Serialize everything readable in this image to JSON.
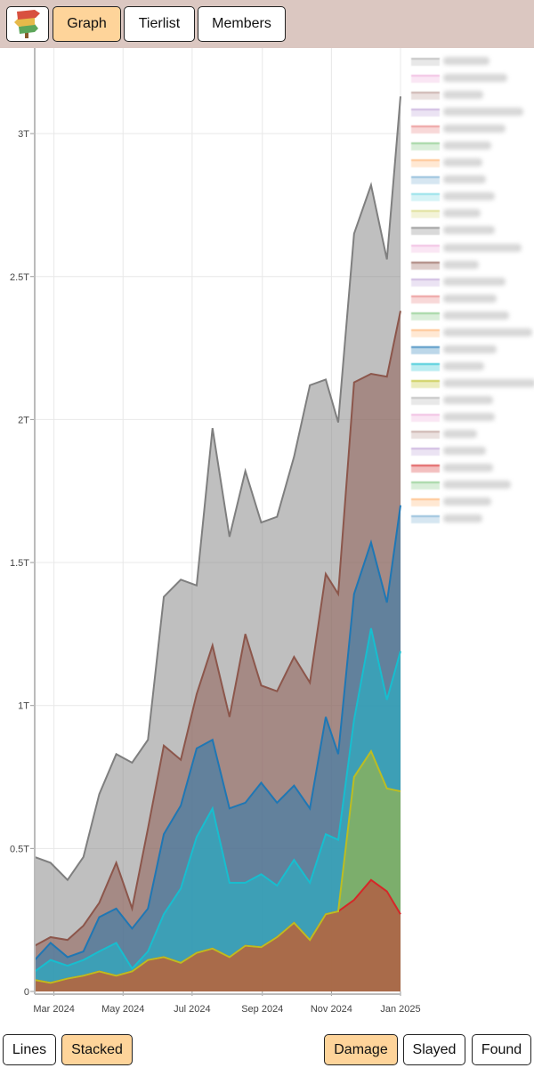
{
  "header": {
    "logo_icon": "signpost-icon",
    "tabs": [
      {
        "label": "Graph",
        "active": true
      },
      {
        "label": "Tierlist",
        "active": false
      },
      {
        "label": "Members",
        "active": false
      }
    ]
  },
  "footer": {
    "mode_buttons": [
      {
        "label": "Lines",
        "active": false
      },
      {
        "label": "Stacked",
        "active": true
      }
    ],
    "metric_buttons": [
      {
        "label": "Damage",
        "active": true
      },
      {
        "label": "Slayed",
        "active": false
      },
      {
        "label": "Found",
        "active": false
      }
    ]
  },
  "colors": {
    "header_bg": "#dbc7c1",
    "active_button": "#fed49a"
  },
  "legend": {
    "entries": [
      {
        "color": "#7f7f7f",
        "active": false
      },
      {
        "color": "#e377c2",
        "active": false
      },
      {
        "color": "#8c564b",
        "active": false
      },
      {
        "color": "#9467bd",
        "active": false
      },
      {
        "color": "#d62728",
        "active": false
      },
      {
        "color": "#2ca02c",
        "active": false
      },
      {
        "color": "#ff7f0e",
        "active": false
      },
      {
        "color": "#1f77b4",
        "active": false
      },
      {
        "color": "#17becf",
        "active": false
      },
      {
        "color": "#bcbd22",
        "active": false
      },
      {
        "color": "#7f7f7f",
        "active": true
      },
      {
        "color": "#e377c2",
        "active": false
      },
      {
        "color": "#8c564b",
        "active": true
      },
      {
        "color": "#9467bd",
        "active": false
      },
      {
        "color": "#d62728",
        "active": false
      },
      {
        "color": "#2ca02c",
        "active": false
      },
      {
        "color": "#ff7f0e",
        "active": false
      },
      {
        "color": "#1f77b4",
        "active": true
      },
      {
        "color": "#17becf",
        "active": true
      },
      {
        "color": "#bcbd22",
        "active": true
      },
      {
        "color": "#7f7f7f",
        "active": false
      },
      {
        "color": "#e377c2",
        "active": false
      },
      {
        "color": "#8c564b",
        "active": false
      },
      {
        "color": "#9467bd",
        "active": false
      },
      {
        "color": "#d62728",
        "active": true
      },
      {
        "color": "#2ca02c",
        "active": false
      },
      {
        "color": "#ff7f0e",
        "active": false
      },
      {
        "color": "#1f77b4",
        "active": false
      }
    ]
  },
  "chart_data": {
    "type": "area",
    "stacked": true,
    "title": "",
    "xlabel": "",
    "ylabel": "",
    "ylim": [
      0,
      3.25
    ],
    "y_unit_suffix": "T",
    "yticks": [
      {
        "v": 0,
        "label": "0"
      },
      {
        "v": 0.5,
        "label": "0.5T"
      },
      {
        "v": 1,
        "label": "1T"
      },
      {
        "v": 1.5,
        "label": "1.5T"
      },
      {
        "v": 2,
        "label": "2T"
      },
      {
        "v": 2.5,
        "label": "2.5T"
      },
      {
        "v": 3,
        "label": "3T"
      }
    ],
    "xlim": [
      "2024-02-13",
      "2025-01-01"
    ],
    "xticks": [
      {
        "date": "2024-03-01",
        "label": "Mar 2024"
      },
      {
        "date": "2024-05-01",
        "label": "May 2024"
      },
      {
        "date": "2024-07-01",
        "label": "Jul 2024"
      },
      {
        "date": "2024-09-01",
        "label": "Sep 2024"
      },
      {
        "date": "2024-11-01",
        "label": "Nov 2024"
      },
      {
        "date": "2025-01-01",
        "label": "Jan 2025"
      }
    ],
    "grid": true,
    "legend_position": "right",
    "x": [
      "2024-02-13",
      "2024-02-27",
      "2024-03-13",
      "2024-03-27",
      "2024-04-10",
      "2024-04-25",
      "2024-05-09",
      "2024-05-23",
      "2024-06-06",
      "2024-06-21",
      "2024-07-05",
      "2024-07-19",
      "2024-08-03",
      "2024-08-17",
      "2024-08-31",
      "2024-09-14",
      "2024-09-29",
      "2024-10-13",
      "2024-10-27",
      "2024-11-07",
      "2024-11-21",
      "2024-12-06",
      "2024-12-20",
      "2025-01-01"
    ],
    "series": [
      {
        "color": "#d62728",
        "values": [
          0.04,
          0.03,
          0.045,
          0.055,
          0.07,
          0.055,
          0.07,
          0.11,
          0.12,
          0.1,
          0.135,
          0.15,
          0.12,
          0.16,
          0.155,
          0.19,
          0.24,
          0.18,
          0.27,
          0.28,
          0.32,
          0.39,
          0.35,
          0.27
        ]
      },
      {
        "color": "#bcbd22",
        "values": [
          0,
          0,
          0,
          0,
          0,
          0,
          0,
          0,
          0,
          0,
          0,
          0,
          0,
          0,
          0,
          0,
          0,
          0,
          0,
          0,
          0.43,
          0.45,
          0.36,
          0.43
        ]
      },
      {
        "color": "#17becf",
        "values": [
          0.03,
          0.08,
          0.045,
          0.055,
          0.07,
          0.115,
          0.01,
          0.03,
          0.15,
          0.26,
          0.405,
          0.49,
          0.26,
          0.22,
          0.255,
          0.18,
          0.22,
          0.2,
          0.28,
          0.25,
          0.2,
          0.43,
          0.31,
          0.49
        ]
      },
      {
        "color": "#1f77b4",
        "values": [
          0.04,
          0.06,
          0.03,
          0.03,
          0.12,
          0.12,
          0.14,
          0.15,
          0.28,
          0.29,
          0.31,
          0.24,
          0.26,
          0.28,
          0.32,
          0.29,
          0.26,
          0.26,
          0.41,
          0.3,
          0.44,
          0.3,
          0.34,
          0.51
        ]
      },
      {
        "color": "#8c564b",
        "values": [
          0.05,
          0.02,
          0.06,
          0.09,
          0.05,
          0.16,
          0.07,
          0.28,
          0.31,
          0.16,
          0.19,
          0.33,
          0.32,
          0.59,
          0.34,
          0.39,
          0.45,
          0.44,
          0.5,
          0.56,
          0.74,
          0.59,
          0.79,
          0.68
        ]
      },
      {
        "color": "#7f7f7f",
        "values": [
          0.31,
          0.26,
          0.21,
          0.24,
          0.38,
          0.38,
          0.51,
          0.31,
          0.52,
          0.63,
          0.38,
          0.76,
          0.63,
          0.57,
          0.57,
          0.61,
          0.7,
          1.04,
          0.68,
          0.6,
          0.52,
          0.66,
          0.41,
          0.75
        ]
      }
    ]
  }
}
